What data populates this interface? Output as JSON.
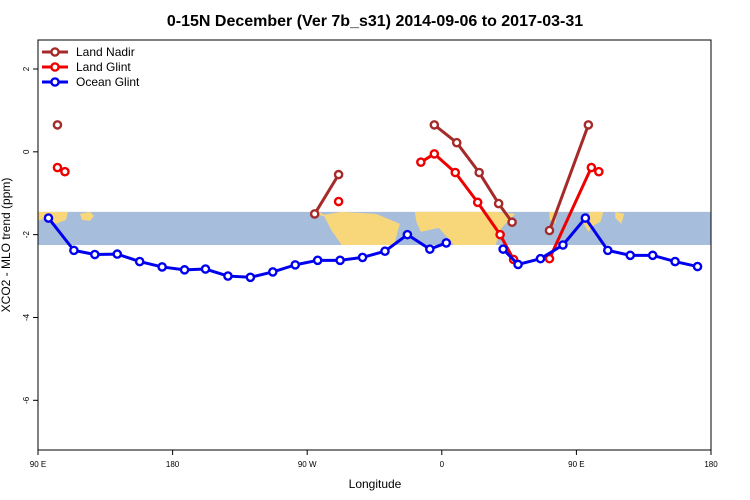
{
  "chart_data": {
    "type": "line",
    "title": "0-15N December (Ver 7b_s31)   2014-09-06 to 2017-03-31",
    "xlabel": "Longitude",
    "ylabel": "XCO2 - MLO trend (ppm)",
    "x_ticks": [
      {
        "value": 90,
        "label": "90 E"
      },
      {
        "value": 180,
        "label": "180"
      },
      {
        "value": 270,
        "label": "90 W"
      },
      {
        "value": 360,
        "label": "0"
      },
      {
        "value": 450,
        "label": "90 E"
      },
      {
        "value": 540,
        "label": "180"
      }
    ],
    "y_ticks": [
      {
        "value": 2,
        "label": "2"
      },
      {
        "value": 0,
        "label": "0"
      },
      {
        "value": -2,
        "label": "-2"
      },
      {
        "value": -4,
        "label": "-4"
      },
      {
        "value": -6,
        "label": "-6"
      }
    ],
    "xlim": [
      90,
      540
    ],
    "ylim": [
      -7.2,
      2.7
    ],
    "map_band": {
      "y_top": -1.45,
      "y_bottom": -2.25,
      "ocean_color": "#a6bddb",
      "land_color": "#f7d77a"
    },
    "legend_position": "top-left",
    "series": [
      {
        "name": "Land Nadir",
        "color": "#a52a2a",
        "segments": [
          [
            [
              103,
              0.65
            ]
          ],
          [
            [
              275,
              -1.5
            ],
            [
              291,
              -0.55
            ]
          ],
          [
            [
              355,
              0.65
            ],
            [
              370,
              0.22
            ],
            [
              385,
              -0.5
            ],
            [
              398,
              -1.25
            ],
            [
              407,
              -1.7
            ]
          ],
          [
            [
              432,
              -1.9
            ],
            [
              458,
              0.65
            ]
          ]
        ]
      },
      {
        "name": "Land Glint",
        "color": "#ee0000",
        "segments": [
          [
            [
              103,
              -0.38
            ],
            [
              108,
              -0.48
            ]
          ],
          [
            [
              291,
              -1.2
            ]
          ],
          [
            [
              346,
              -0.25
            ],
            [
              355,
              -0.05
            ],
            [
              369,
              -0.5
            ],
            [
              384,
              -1.22
            ],
            [
              399,
              -2.0
            ],
            [
              408,
              -2.6
            ]
          ],
          [
            [
              432,
              -2.58
            ],
            [
              460,
              -0.38
            ],
            [
              465,
              -0.48
            ]
          ]
        ]
      },
      {
        "name": "Ocean Glint",
        "color": "#0000ee",
        "segments": [
          [
            [
              97,
              -1.6
            ],
            [
              114,
              -2.38
            ],
            [
              128,
              -2.48
            ],
            [
              143,
              -2.47
            ],
            [
              158,
              -2.65
            ],
            [
              173,
              -2.78
            ],
            [
              188,
              -2.85
            ],
            [
              202,
              -2.83
            ],
            [
              217,
              -3.0
            ],
            [
              232,
              -3.03
            ],
            [
              247,
              -2.9
            ],
            [
              262,
              -2.73
            ],
            [
              277,
              -2.62
            ],
            [
              292,
              -2.62
            ],
            [
              307,
              -2.55
            ],
            [
              322,
              -2.4
            ],
            [
              337,
              -2.0
            ],
            [
              352,
              -2.35
            ],
            [
              363,
              -2.2
            ]
          ],
          [
            [
              401,
              -2.35
            ],
            [
              411,
              -2.72
            ],
            [
              426,
              -2.58
            ],
            [
              441,
              -2.25
            ],
            [
              456,
              -1.6
            ],
            [
              471,
              -2.38
            ],
            [
              486,
              -2.5
            ],
            [
              501,
              -2.5
            ],
            [
              516,
              -2.65
            ],
            [
              531,
              -2.77
            ]
          ]
        ]
      }
    ]
  }
}
